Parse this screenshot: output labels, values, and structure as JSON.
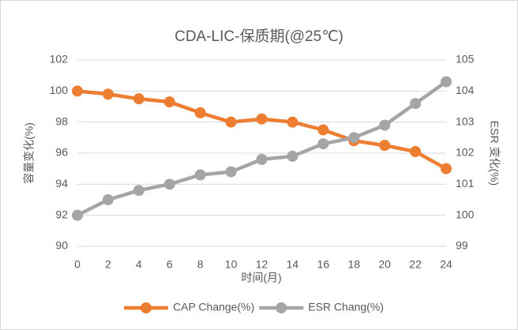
{
  "chart_data": {
    "type": "line",
    "title": "CDA-LIC-保质期(@25℃)",
    "xlabel": "时间(月)",
    "ylabel": "容量变化(%)",
    "y2label": "ESR 变化(%)",
    "x": [
      0,
      2,
      4,
      6,
      8,
      10,
      12,
      14,
      16,
      18,
      20,
      22,
      24
    ],
    "xlim": [
      0,
      24
    ],
    "xticks": [
      0,
      2,
      4,
      6,
      8,
      10,
      12,
      14,
      16,
      18,
      20,
      22,
      24
    ],
    "ylim": [
      90,
      102
    ],
    "yticks": [
      90,
      92,
      94,
      96,
      98,
      100,
      102
    ],
    "y2lim": [
      99,
      105
    ],
    "y2ticks": [
      99,
      100,
      101,
      102,
      103,
      104,
      105
    ],
    "grid": true,
    "legend": "bottom",
    "series": [
      {
        "name": "CAP Change(%)",
        "color": "#ed7d31",
        "values": [
          100,
          99.8,
          99.5,
          99.3,
          98.6,
          98.0,
          98.2,
          98.0,
          97.5,
          96.8,
          96.5,
          96.1,
          95.0
        ]
      },
      {
        "name": "ESR Chang(%)",
        "color": "#a5a5a5",
        "axis": "y2",
        "values": [
          100,
          100.5,
          100.8,
          101.0,
          101.3,
          101.4,
          101.8,
          101.9,
          102.3,
          102.5,
          102.9,
          103.6,
          104.3
        ]
      }
    ]
  }
}
